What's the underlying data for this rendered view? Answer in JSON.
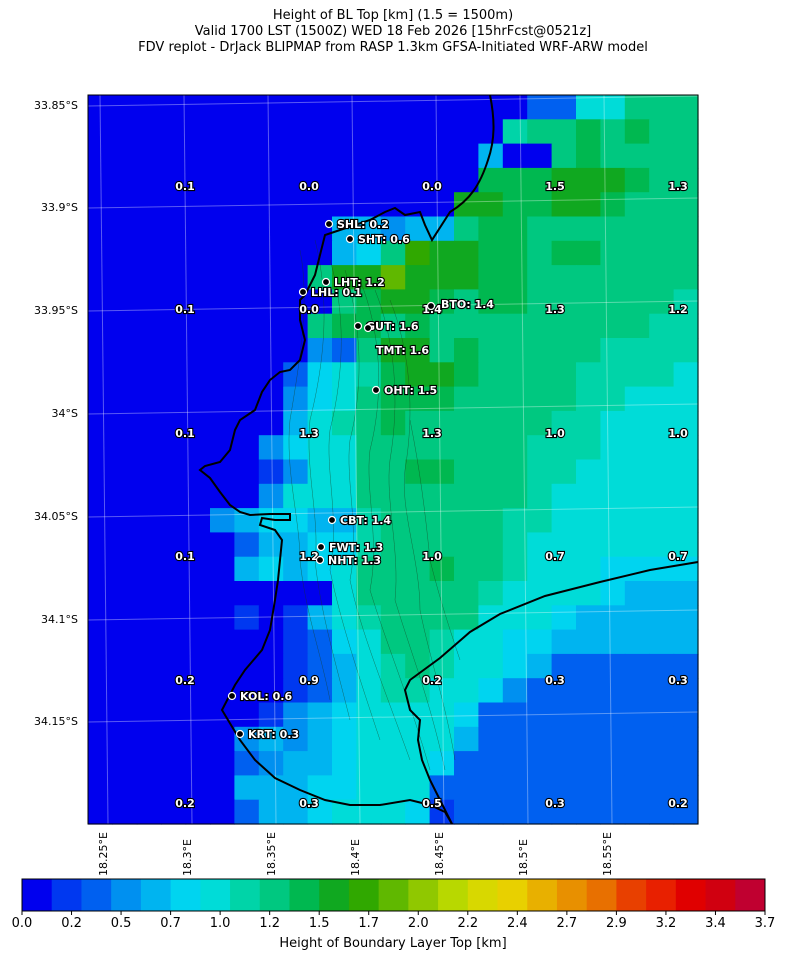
{
  "title": {
    "line1": "Height of BL Top [km] (1.5 = 1500m)",
    "line2": "Valid 1700 LST (1500Z) WED 18 Feb 2026 [15hrFcst@0521z]",
    "line3": "FDV replot - DrJack BLIPMAP from RASP 1.3km GFSA-Initiated WRF-ARW model"
  },
  "axes": {
    "lat_labels": [
      "33.85°S",
      "33.9°S",
      "33.95°S",
      "34°S",
      "34.05°S",
      "34.1°S",
      "34.15°S"
    ],
    "lon_labels": [
      "18.25°E",
      "18.3°E",
      "18.35°E",
      "18.4°E",
      "18.45°E",
      "18.5°E",
      "18.55°E"
    ]
  },
  "grid_values": [
    [
      "0.1",
      "0.0",
      "0.0",
      "1.5",
      "1.3"
    ],
    [
      "0.1",
      "0.0",
      "1.4",
      "1.3",
      "1.2"
    ],
    [
      "0.1",
      "1.3",
      "1.3",
      "1.0",
      "1.0"
    ],
    [
      "0.1",
      "1.2",
      "1.0",
      "0.7",
      "0.7"
    ],
    [
      "0.2",
      "0.9",
      "0.2",
      "0.3",
      "0.3"
    ],
    [
      "0.2",
      "0.3",
      "0.5",
      "0.3",
      "0.2"
    ]
  ],
  "stations": [
    {
      "name": "SHL",
      "value": "0.2",
      "label": "SHL: 0.2"
    },
    {
      "name": "SHT",
      "value": "0.6",
      "label": "SHT: 0.6"
    },
    {
      "name": "LHT",
      "value": "1.2",
      "label": "LHT: 1.2"
    },
    {
      "name": "LHL",
      "value": "0.1",
      "label": "LHL: 0.1"
    },
    {
      "name": "BTO",
      "value": "1.4",
      "label": "BTO: 1.4"
    },
    {
      "name": "GUT",
      "value": "1.6",
      "label": "GUT: 1.6"
    },
    {
      "name": "TMT",
      "value": "1.6",
      "label": "TMT: 1.6"
    },
    {
      "name": "OHT",
      "value": "1.5",
      "label": "OHT: 1.5"
    },
    {
      "name": "CBT",
      "value": "1.4",
      "label": "CBT: 1.4"
    },
    {
      "name": "FWT",
      "value": "1.3",
      "label": "FWT: 1.3"
    },
    {
      "name": "NHT",
      "value": "1.3",
      "label": "NHT: 1.3"
    },
    {
      "name": "KOL",
      "value": "0.6",
      "label": "KOL: 0.6"
    },
    {
      "name": "KRT",
      "value": "0.3",
      "label": "KRT: 0.3"
    }
  ],
  "colorbar": {
    "title": "Height of Boundary Layer Top [km]",
    "tick_labels": [
      "0.0",
      "0.2",
      "0.5",
      "0.7",
      "1.0",
      "1.2",
      "1.5",
      "1.7",
      "2.0",
      "2.2",
      "2.4",
      "2.7",
      "2.9",
      "3.2",
      "3.4",
      "3.7"
    ],
    "min": 0.0,
    "max": 3.7,
    "colors": [
      "#0000ee",
      "#0038f0",
      "#0060f0",
      "#0090f0",
      "#00b4f0",
      "#00d4f0",
      "#00dcd8",
      "#00d4a8",
      "#00c880",
      "#00b850",
      "#10a820",
      "#30a800",
      "#60b800",
      "#90c800",
      "#b8d800",
      "#d8d800",
      "#e8d000",
      "#e8b000",
      "#e89000",
      "#e87000",
      "#e84000",
      "#e82000",
      "#e00000",
      "#d00010",
      "#c00030"
    ]
  },
  "raster_levels": [
    [
      0.0,
      0.0,
      0.0,
      0.0,
      0.0,
      0.0,
      0.0,
      0.0,
      0.0,
      0.0,
      0.0,
      0.0,
      0.0,
      0.0,
      0.0,
      0.0,
      0.0,
      0.1,
      0.4,
      0.4,
      1.0,
      1.0,
      1.2,
      1.3,
      1.2
    ],
    [
      0.0,
      0.0,
      0.0,
      0.0,
      0.0,
      0.0,
      0.0,
      0.0,
      0.0,
      0.0,
      0.0,
      0.0,
      0.0,
      0.0,
      0.0,
      0.0,
      0.0,
      1.1,
      1.3,
      1.2,
      1.4,
      1.3,
      1.4,
      1.3,
      1.3
    ],
    [
      0.0,
      0.0,
      0.0,
      0.0,
      0.0,
      0.0,
      0.0,
      0.0,
      0.0,
      0.0,
      0.0,
      0.0,
      0.0,
      0.0,
      0.0,
      0.0,
      0.6,
      0.0,
      0.0,
      1.3,
      1.4,
      1.3,
      1.3,
      1.3,
      1.3
    ],
    [
      0.0,
      0.0,
      0.0,
      0.0,
      0.0,
      0.0,
      0.0,
      0.0,
      0.0,
      0.0,
      0.0,
      0.0,
      0.0,
      0.0,
      0.0,
      0.0,
      1.4,
      1.4,
      1.4,
      1.5,
      1.5,
      1.5,
      1.4,
      1.3,
      1.3
    ],
    [
      0.0,
      0.0,
      0.0,
      0.0,
      0.0,
      0.0,
      0.0,
      0.0,
      0.0,
      0.0,
      0.0,
      0.0,
      0.0,
      0.0,
      0.0,
      1.5,
      1.6,
      1.4,
      1.4,
      1.5,
      1.5,
      1.4,
      1.3,
      1.3,
      1.3
    ],
    [
      0.0,
      0.0,
      0.0,
      0.0,
      0.0,
      0.0,
      0.0,
      0.0,
      0.0,
      0.0,
      0.6,
      0.6,
      0.5,
      0.6,
      0.6,
      1.3,
      1.4,
      1.4,
      1.3,
      1.3,
      1.3,
      1.3,
      1.3,
      1.2,
      1.2
    ],
    [
      0.0,
      0.0,
      0.0,
      0.0,
      0.0,
      0.0,
      0.0,
      0.0,
      0.0,
      0.0,
      0.7,
      0.8,
      1.3,
      1.7,
      1.6,
      1.5,
      1.4,
      1.4,
      1.3,
      1.4,
      1.4,
      1.3,
      1.3,
      1.2,
      1.2
    ],
    [
      0.0,
      0.0,
      0.0,
      0.0,
      0.0,
      0.0,
      0.0,
      0.0,
      0.0,
      1.2,
      1.5,
      1.6,
      1.8,
      1.6,
      1.5,
      1.5,
      1.4,
      1.4,
      1.3,
      1.3,
      1.3,
      1.3,
      1.2,
      1.2,
      1.2
    ],
    [
      0.0,
      0.0,
      0.0,
      0.0,
      0.0,
      0.0,
      0.0,
      0.0,
      0.0,
      0.0,
      1.3,
      1.4,
      1.5,
      1.5,
      1.4,
      1.3,
      1.4,
      1.4,
      1.3,
      1.3,
      1.3,
      1.2,
      1.2,
      1.2,
      1.1
    ],
    [
      0.0,
      0.0,
      0.0,
      0.0,
      0.0,
      0.0,
      0.0,
      0.0,
      0.0,
      1.3,
      1.4,
      1.4,
      1.3,
      1.4,
      1.3,
      1.3,
      1.3,
      1.3,
      1.3,
      1.3,
      1.2,
      1.2,
      1.2,
      1.1,
      1.1
    ],
    [
      0.0,
      0.0,
      0.0,
      0.0,
      0.0,
      0.0,
      0.0,
      0.0,
      0.0,
      0.5,
      0.4,
      1.3,
      1.5,
      1.5,
      1.3,
      1.4,
      1.3,
      1.3,
      1.3,
      1.2,
      1.2,
      1.1,
      1.1,
      1.1,
      1.1
    ],
    [
      0.0,
      0.0,
      0.0,
      0.0,
      0.0,
      0.0,
      0.0,
      0.0,
      0.4,
      0.8,
      1.0,
      1.1,
      1.4,
      1.5,
      1.5,
      1.4,
      1.3,
      1.3,
      1.3,
      1.2,
      1.1,
      1.1,
      1.1,
      1.1,
      1.0
    ],
    [
      0.0,
      0.0,
      0.0,
      0.0,
      0.0,
      0.0,
      0.0,
      0.0,
      0.5,
      0.8,
      0.9,
      1.2,
      1.4,
      1.4,
      1.4,
      1.3,
      1.2,
      1.3,
      1.2,
      1.2,
      1.1,
      1.1,
      1.0,
      1.0,
      1.0
    ],
    [
      0.0,
      0.0,
      0.0,
      0.0,
      0.0,
      0.0,
      0.0,
      0.1,
      0.6,
      0.9,
      1.1,
      1.3,
      1.4,
      1.3,
      1.3,
      1.3,
      1.3,
      1.2,
      1.2,
      1.1,
      1.1,
      1.0,
      1.0,
      1.0,
      1.0
    ],
    [
      0.0,
      0.0,
      0.0,
      0.0,
      0.0,
      0.0,
      0.0,
      0.5,
      0.8,
      1.0,
      0.9,
      1.2,
      1.3,
      1.3,
      1.3,
      1.3,
      1.2,
      1.2,
      1.1,
      1.1,
      1.1,
      1.0,
      1.0,
      1.0,
      1.0
    ],
    [
      0.0,
      0.0,
      0.0,
      0.0,
      0.0,
      0.0,
      0.1,
      0.2,
      0.5,
      0.9,
      0.9,
      1.2,
      1.3,
      1.4,
      1.4,
      1.3,
      1.3,
      1.2,
      1.1,
      1.1,
      1.0,
      1.0,
      1.0,
      1.0,
      1.0
    ],
    [
      0.0,
      0.0,
      0.0,
      0.0,
      0.0,
      0.0,
      0.0,
      0.5,
      0.9,
      0.9,
      0.9,
      1.2,
      1.2,
      1.3,
      1.3,
      1.3,
      1.2,
      1.2,
      1.1,
      1.0,
      1.0,
      1.0,
      1.0,
      0.9,
      0.9
    ],
    [
      0.0,
      0.0,
      0.0,
      0.0,
      0.0,
      0.5,
      0.7,
      0.8,
      0.8,
      0.7,
      0.7,
      1.1,
      1.2,
      1.2,
      1.2,
      1.2,
      1.2,
      1.1,
      1.1,
      1.0,
      1.0,
      0.9,
      0.9,
      0.9,
      0.9
    ],
    [
      0.0,
      0.0,
      0.0,
      0.0,
      0.0,
      0.0,
      0.3,
      0.6,
      0.6,
      0.8,
      0.8,
      1.1,
      1.2,
      1.3,
      1.3,
      1.2,
      1.2,
      1.1,
      1.0,
      1.0,
      0.9,
      0.9,
      0.9,
      0.9,
      0.9
    ],
    [
      0.0,
      0.0,
      0.0,
      0.0,
      0.0,
      0.0,
      0.6,
      0.8,
      0.7,
      0.8,
      1.0,
      1.2,
      1.2,
      1.3,
      1.4,
      1.3,
      1.2,
      1.1,
      1.0,
      1.0,
      0.9,
      0.8,
      0.8,
      0.8,
      0.8
    ],
    [
      0.0,
      0.0,
      0.0,
      0.0,
      0.0,
      0.0,
      0.0,
      0.0,
      0.0,
      0.0,
      1.0,
      1.2,
      1.3,
      1.3,
      1.3,
      1.3,
      1.1,
      1.0,
      0.9,
      0.9,
      0.9,
      0.8,
      0.7,
      0.7,
      0.7
    ],
    [
      0.0,
      0.0,
      0.0,
      0.0,
      0.0,
      0.0,
      0.2,
      0.1,
      0.2,
      0.6,
      0.9,
      1.1,
      1.2,
      1.3,
      1.2,
      1.2,
      1.0,
      0.9,
      0.9,
      0.8,
      0.7,
      0.7,
      0.7,
      0.7,
      0.7
    ],
    [
      0.0,
      0.0,
      0.0,
      0.0,
      0.0,
      0.0,
      0.0,
      0.1,
      0.2,
      0.3,
      0.8,
      1.0,
      1.2,
      1.2,
      1.1,
      1.0,
      0.9,
      0.8,
      0.8,
      0.6,
      0.6,
      0.6,
      0.6,
      0.6,
      0.6
    ],
    [
      0.1,
      0.0,
      0.0,
      0.0,
      0.0,
      0.0,
      0.0,
      0.0,
      0.2,
      0.3,
      0.7,
      1.0,
      1.1,
      1.2,
      1.1,
      1.0,
      0.9,
      0.8,
      0.6,
      0.3,
      0.3,
      0.3,
      0.3,
      0.3,
      0.3
    ],
    [
      0.0,
      0.0,
      0.0,
      0.0,
      0.0,
      0.0,
      0.0,
      0.0,
      0.2,
      0.3,
      0.7,
      1.0,
      1.1,
      1.1,
      1.0,
      0.9,
      0.8,
      0.5,
      0.3,
      0.3,
      0.3,
      0.3,
      0.3,
      0.3,
      0.3
    ],
    [
      0.0,
      0.0,
      0.0,
      0.0,
      0.0,
      0.0,
      0.1,
      0.2,
      0.5,
      0.6,
      0.8,
      1.0,
      1.0,
      1.0,
      1.0,
      0.8,
      0.4,
      0.3,
      0.3,
      0.3,
      0.3,
      0.3,
      0.3,
      0.3,
      0.3
    ],
    [
      0.0,
      0.0,
      0.0,
      0.0,
      0.0,
      0.0,
      0.5,
      0.7,
      0.5,
      0.7,
      0.8,
      1.0,
      1.0,
      1.0,
      0.9,
      0.6,
      0.3,
      0.3,
      0.3,
      0.3,
      0.3,
      0.3,
      0.3,
      0.3,
      0.3
    ],
    [
      0.0,
      0.0,
      0.0,
      0.0,
      0.0,
      0.0,
      0.3,
      0.5,
      0.6,
      0.7,
      0.8,
      0.9,
      1.0,
      0.9,
      0.8,
      0.3,
      0.3,
      0.3,
      0.3,
      0.3,
      0.3,
      0.3,
      0.3,
      0.3,
      0.3
    ],
    [
      0.0,
      0.0,
      0.0,
      0.0,
      0.0,
      0.0,
      0.6,
      0.7,
      0.7,
      0.8,
      0.8,
      0.9,
      0.9,
      0.9,
      0.3,
      0.3,
      0.3,
      0.3,
      0.3,
      0.3,
      0.3,
      0.3,
      0.3,
      0.3,
      0.3
    ],
    [
      0.0,
      0.0,
      0.0,
      0.0,
      0.0,
      0.0,
      0.3,
      0.6,
      0.7,
      0.8,
      0.9,
      0.9,
      0.9,
      0.8,
      0.2,
      0.3,
      0.3,
      0.3,
      0.3,
      0.3,
      0.3,
      0.3,
      0.3,
      0.3,
      0.3
    ]
  ]
}
